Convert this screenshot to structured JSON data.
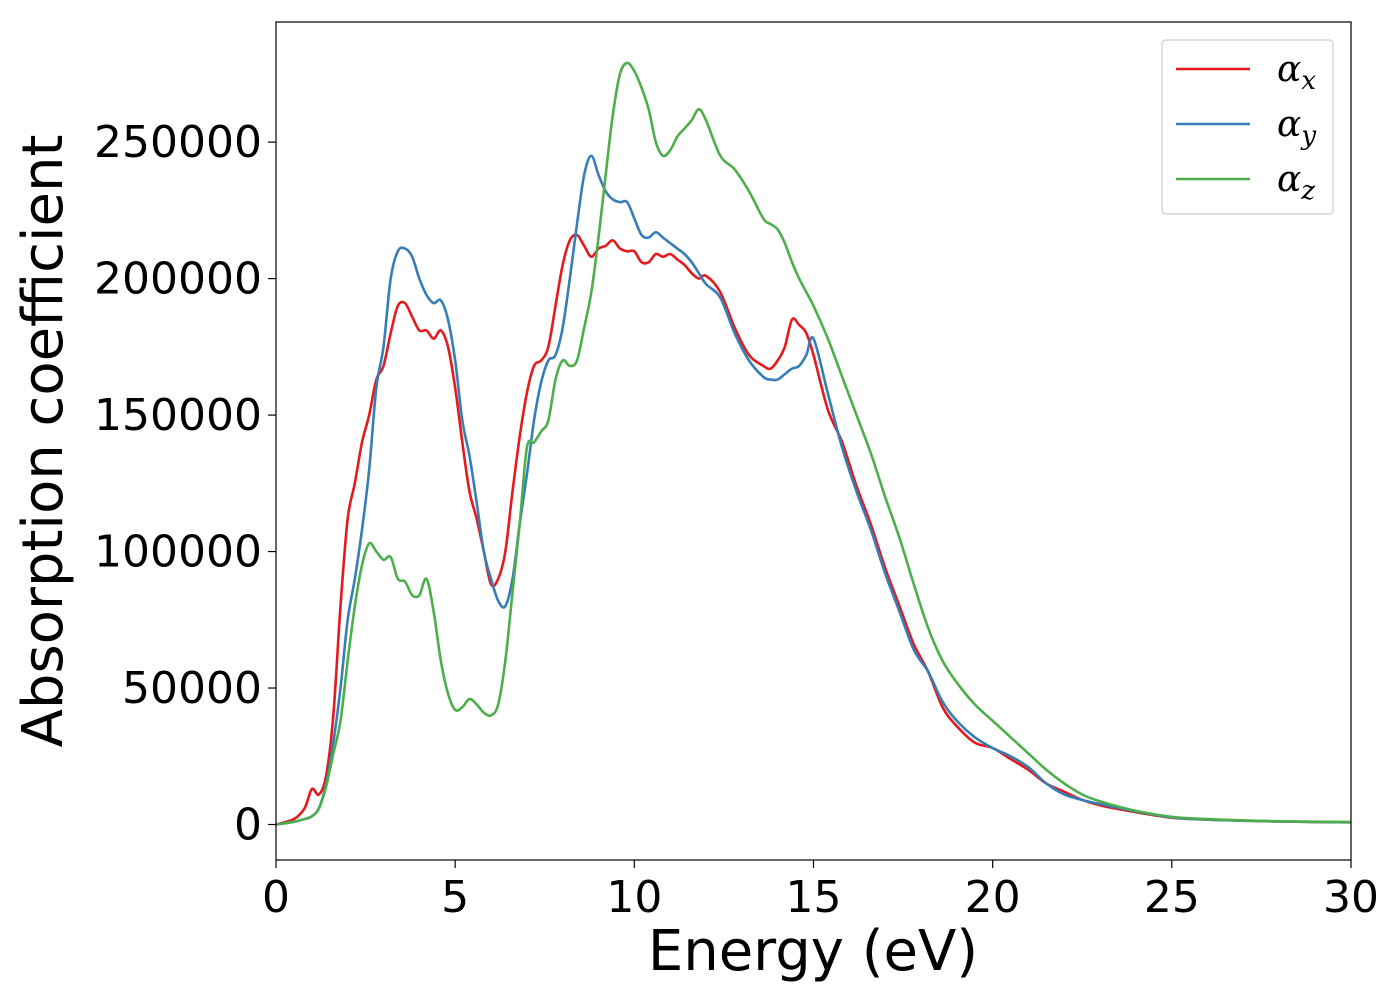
{
  "chart_data": {
    "type": "line",
    "title": "",
    "xlabel": "Energy (eV)",
    "ylabel": "Absorption coefficient",
    "xlim": [
      0,
      30
    ],
    "ylim": [
      -13000,
      294000
    ],
    "xticks": [
      0,
      5,
      10,
      15,
      20,
      25,
      30
    ],
    "yticks": [
      0,
      50000,
      100000,
      150000,
      200000,
      250000
    ],
    "grid": false,
    "legend_position": "top-right",
    "series": [
      {
        "name": "α",
        "subscript": "x",
        "color": "#e41a1c",
        "x": [
          0,
          0.5,
          0.8,
          1.0,
          1.2,
          1.4,
          1.6,
          1.8,
          2.0,
          2.2,
          2.4,
          2.6,
          2.8,
          3.0,
          3.2,
          3.4,
          3.6,
          3.8,
          4.0,
          4.2,
          4.4,
          4.6,
          4.8,
          5.0,
          5.2,
          5.4,
          5.6,
          5.8,
          6.0,
          6.2,
          6.4,
          6.6,
          6.8,
          7.0,
          7.2,
          7.4,
          7.6,
          7.8,
          8.0,
          8.2,
          8.4,
          8.6,
          8.8,
          9.0,
          9.2,
          9.4,
          9.6,
          9.8,
          10.0,
          10.2,
          10.4,
          10.6,
          10.8,
          11.0,
          11.2,
          11.4,
          11.6,
          11.8,
          12.0,
          12.4,
          12.8,
          13.2,
          13.6,
          13.8,
          14.0,
          14.2,
          14.4,
          14.6,
          14.8,
          15.0,
          15.4,
          15.8,
          16.2,
          16.6,
          17.0,
          17.4,
          17.8,
          18.2,
          18.6,
          19.0,
          19.5,
          20.0,
          20.5,
          21.0,
          21.5,
          22.0,
          22.5,
          23.0,
          24.0,
          25.0,
          26.0,
          27.0,
          28.0,
          30.0
        ],
        "y": [
          0,
          2000,
          6000,
          13000,
          11000,
          18000,
          40000,
          80000,
          112000,
          125000,
          140000,
          150000,
          163000,
          168000,
          180000,
          190000,
          191000,
          186000,
          181000,
          181000,
          178000,
          181000,
          175000,
          160000,
          140000,
          122000,
          112000,
          100000,
          88000,
          90000,
          100000,
          122000,
          142000,
          158000,
          168000,
          170000,
          175000,
          190000,
          205000,
          214000,
          216000,
          212000,
          208000,
          211000,
          212000,
          214000,
          211000,
          210000,
          210000,
          206000,
          206000,
          209000,
          208000,
          209000,
          207000,
          205000,
          202000,
          200000,
          201000,
          195000,
          182000,
          172000,
          168000,
          167000,
          170000,
          175000,
          185000,
          183000,
          180000,
          172000,
          152000,
          140000,
          124000,
          110000,
          94000,
          80000,
          66000,
          56000,
          43000,
          36000,
          30000,
          28000,
          24000,
          20000,
          15000,
          12000,
          9000,
          7000,
          4500,
          2500,
          1800,
          1400,
          1100,
          800
        ]
      },
      {
        "name": "α",
        "subscript": "y",
        "color": "#377eb8",
        "x": [
          0,
          0.5,
          0.8,
          1.0,
          1.2,
          1.4,
          1.6,
          1.8,
          2.0,
          2.2,
          2.4,
          2.6,
          2.8,
          3.0,
          3.2,
          3.4,
          3.6,
          3.8,
          4.0,
          4.2,
          4.4,
          4.6,
          4.8,
          5.0,
          5.2,
          5.4,
          5.6,
          5.8,
          6.0,
          6.2,
          6.4,
          6.6,
          6.8,
          7.0,
          7.2,
          7.4,
          7.6,
          7.8,
          8.0,
          8.2,
          8.4,
          8.6,
          8.8,
          9.0,
          9.2,
          9.4,
          9.6,
          9.8,
          10.0,
          10.2,
          10.4,
          10.6,
          10.8,
          11.0,
          11.2,
          11.4,
          11.6,
          11.8,
          12.0,
          12.4,
          12.8,
          13.2,
          13.6,
          13.8,
          14.0,
          14.2,
          14.4,
          14.6,
          14.8,
          15.0,
          15.4,
          15.8,
          16.2,
          16.6,
          17.0,
          17.4,
          17.8,
          18.2,
          18.6,
          19.0,
          19.5,
          20.0,
          20.5,
          21.0,
          21.5,
          22.0,
          22.5,
          23.0,
          24.0,
          25.0,
          26.0,
          27.0,
          28.0,
          30.0
        ],
        "y": [
          0,
          1000,
          2000,
          3000,
          6000,
          15000,
          30000,
          50000,
          75000,
          90000,
          108000,
          130000,
          160000,
          175000,
          200000,
          210000,
          211000,
          208000,
          200000,
          194000,
          191000,
          192000,
          185000,
          170000,
          148000,
          135000,
          118000,
          100000,
          90000,
          82000,
          80000,
          90000,
          110000,
          128000,
          148000,
          162000,
          170000,
          172000,
          182000,
          200000,
          220000,
          238000,
          245000,
          238000,
          232000,
          229000,
          228000,
          228000,
          222000,
          216000,
          215000,
          217000,
          215000,
          213000,
          211000,
          209000,
          206000,
          202000,
          198000,
          193000,
          180000,
          170000,
          164000,
          163000,
          163000,
          165000,
          167000,
          168000,
          172000,
          178000,
          158000,
          138000,
          122000,
          108000,
          92000,
          78000,
          64000,
          56000,
          45000,
          38000,
          32000,
          28000,
          25000,
          21000,
          15000,
          11000,
          9000,
          7500,
          4800,
          2600,
          1800,
          1400,
          1100,
          800
        ]
      },
      {
        "name": "α",
        "subscript": "z",
        "color": "#4daf4a",
        "x": [
          0,
          0.5,
          0.8,
          1.0,
          1.2,
          1.4,
          1.6,
          1.8,
          2.0,
          2.2,
          2.4,
          2.6,
          2.8,
          3.0,
          3.2,
          3.4,
          3.6,
          3.8,
          4.0,
          4.2,
          4.4,
          4.6,
          4.8,
          5.0,
          5.2,
          5.4,
          5.6,
          5.8,
          6.0,
          6.2,
          6.4,
          6.6,
          6.8,
          7.0,
          7.2,
          7.4,
          7.6,
          7.8,
          8.0,
          8.2,
          8.4,
          8.6,
          8.8,
          9.0,
          9.2,
          9.4,
          9.6,
          9.8,
          10.0,
          10.2,
          10.4,
          10.6,
          10.8,
          11.0,
          11.2,
          11.4,
          11.6,
          11.8,
          12.0,
          12.4,
          12.8,
          13.2,
          13.6,
          13.8,
          14.0,
          14.2,
          14.4,
          14.6,
          14.8,
          15.0,
          15.4,
          15.8,
          16.2,
          16.6,
          17.0,
          17.4,
          17.8,
          18.2,
          18.6,
          19.0,
          19.5,
          20.0,
          20.5,
          21.0,
          21.5,
          22.0,
          22.5,
          23.0,
          24.0,
          25.0,
          26.0,
          27.0,
          28.0,
          30.0
        ],
        "y": [
          0,
          1000,
          2000,
          3000,
          6000,
          14000,
          26000,
          38000,
          60000,
          80000,
          95000,
          103000,
          100000,
          97000,
          98000,
          90000,
          89000,
          84000,
          84000,
          90000,
          78000,
          60000,
          48000,
          42000,
          43000,
          46000,
          44000,
          41000,
          40000,
          44000,
          60000,
          85000,
          110000,
          138000,
          140000,
          144000,
          148000,
          163000,
          170000,
          168000,
          170000,
          182000,
          195000,
          215000,
          238000,
          260000,
          275000,
          279000,
          276000,
          270000,
          262000,
          250000,
          245000,
          247000,
          252000,
          255000,
          258000,
          262000,
          258000,
          245000,
          240000,
          232000,
          222000,
          220000,
          218000,
          213000,
          206000,
          200000,
          195000,
          190000,
          178000,
          164000,
          150000,
          136000,
          120000,
          105000,
          88000,
          72000,
          60000,
          52000,
          44000,
          38000,
          32000,
          26000,
          20000,
          15000,
          11000,
          8500,
          5000,
          2800,
          2000,
          1500,
          1200,
          900
        ]
      }
    ]
  }
}
